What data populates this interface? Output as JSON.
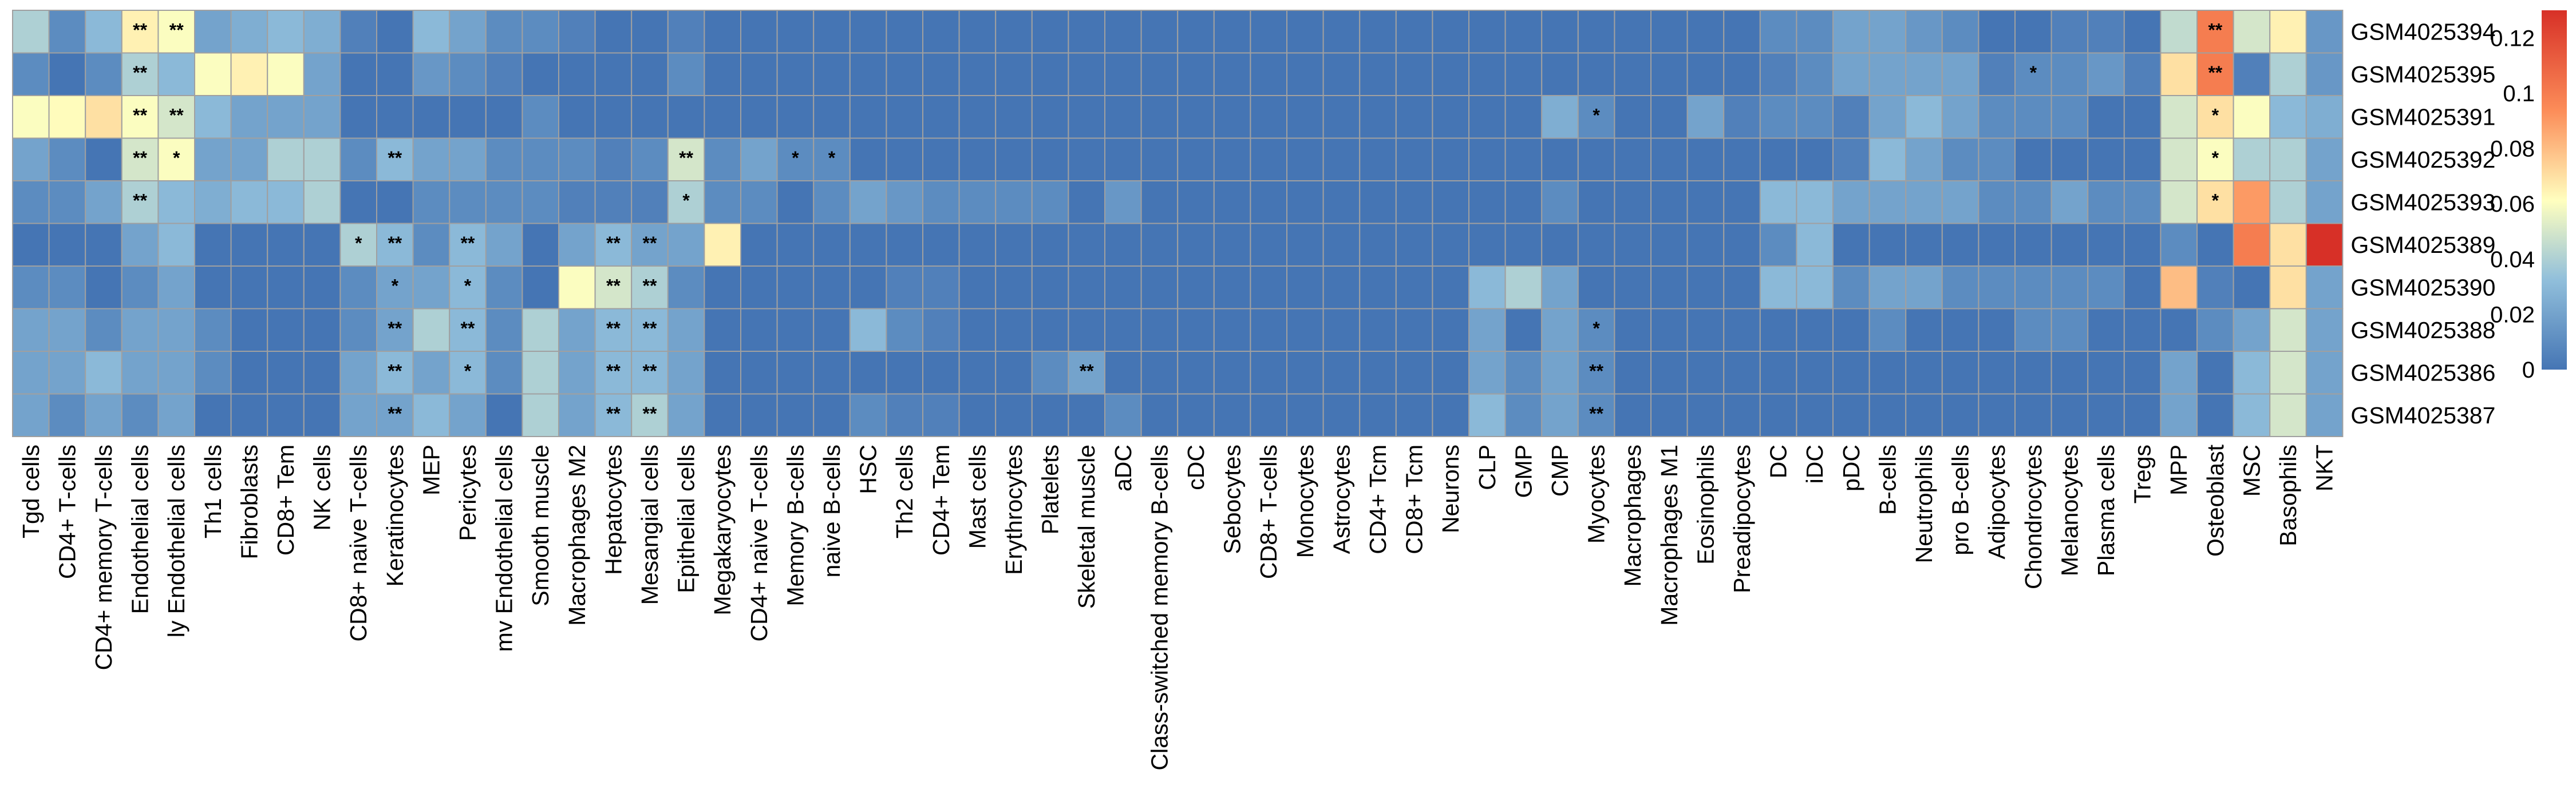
{
  "chart_data": {
    "type": "heatmap",
    "title": "",
    "xlabel": "",
    "ylabel": "",
    "legend": "right",
    "colorbar": {
      "min": 0,
      "max": 0.13,
      "ticks": [
        "0",
        "0.02",
        "0.04",
        "0.06",
        "0.08",
        "0.1",
        "0.12"
      ],
      "tick_values": [
        0,
        0.02,
        0.04,
        0.06,
        0.08,
        0.1,
        0.12
      ]
    },
    "colors": {
      "low": "#4575B4",
      "mid": "#FFFFBF",
      "high": "#D73027",
      "grid": "#a0a0a0"
    },
    "columns": [
      "Tgd cells",
      "CD4+ T-cells",
      "CD4+ memory T-cells",
      "Endothelial cells",
      "ly Endothelial cells",
      "Th1 cells",
      "Fibroblasts",
      "CD8+ Tem",
      "NK cells",
      "CD8+ naive T-cells",
      "Keratinocytes",
      "MEP",
      "Pericytes",
      "mv Endothelial cells",
      "Smooth muscle",
      "Macrophages M2",
      "Hepatocytes",
      "Mesangial cells",
      "Epithelial cells",
      "Megakaryocytes",
      "CD4+ naive T-cells",
      "Memory B-cells",
      "naive B-cells",
      "HSC",
      "Th2 cells",
      "CD4+ Tem",
      "Mast cells",
      "Erythrocytes",
      "Platelets",
      "Skeletal muscle",
      "aDC",
      "Class-switched memory B-cells",
      "cDC",
      "Sebocytes",
      "CD8+ T-cells",
      "Monocytes",
      "Astrocytes",
      "CD4+ Tcm",
      "CD8+ Tcm",
      "Neurons",
      "CLP",
      "GMP",
      "CMP",
      "Myocytes",
      "Macrophages",
      "Macrophages M1",
      "Eosinophils",
      "Preadipocytes",
      "DC",
      "iDC",
      "pDC",
      "B-cells",
      "Neutrophils",
      "pro B-cells",
      "Adipocytes",
      "Chondrocytes",
      "Melanocytes",
      "Plasma cells",
      "Tregs",
      "MPP",
      "Osteoblast",
      "MSC",
      "Basophils",
      "NKT"
    ],
    "rows": [
      "GSM4025394",
      "GSM4025395",
      "GSM4025391",
      "GSM4025392",
      "GSM4025393",
      "GSM4025389",
      "GSM4025390",
      "GSM4025388",
      "GSM4025386",
      "GSM4025387"
    ],
    "values": [
      [
        0.04,
        0.01,
        0.03,
        0.065,
        0.06,
        0.02,
        0.025,
        0.03,
        0.025,
        0.005,
        0,
        0.03,
        0.02,
        0.01,
        0.01,
        0.005,
        0,
        0,
        0.005,
        0,
        0,
        0,
        0,
        0,
        0,
        0,
        0,
        0,
        0,
        0,
        0,
        0,
        0,
        0,
        0,
        0,
        0,
        0,
        0,
        0,
        0,
        0,
        0,
        0,
        0,
        0,
        0,
        0,
        0.01,
        0.01,
        0.02,
        0.02,
        0.015,
        0.01,
        0,
        0,
        0.005,
        0.005,
        0,
        0.045,
        0.1,
        0.05,
        0.065,
        0.015
      ],
      [
        0.01,
        0,
        0.01,
        0.04,
        0.03,
        0.06,
        0.065,
        0.06,
        0.02,
        0,
        0,
        0.015,
        0.01,
        0.005,
        0,
        0,
        0,
        0,
        0.01,
        0,
        0,
        0,
        0,
        0,
        0,
        0,
        0,
        0,
        0,
        0,
        0,
        0,
        0,
        0,
        0,
        0,
        0,
        0,
        0,
        0,
        0,
        0,
        0,
        0,
        0,
        0,
        0,
        0,
        0.005,
        0.01,
        0.02,
        0.02,
        0.02,
        0.02,
        0.005,
        0.01,
        0.01,
        0.015,
        0.005,
        0.07,
        0.1,
        0.005,
        0.04,
        0.015
      ],
      [
        0.06,
        0.062,
        0.07,
        0.06,
        0.05,
        0.03,
        0.02,
        0.02,
        0.02,
        0,
        0,
        0,
        0,
        0,
        0.01,
        0,
        0,
        0,
        0,
        0,
        0,
        0,
        0,
        0,
        0,
        0,
        0,
        0,
        0,
        0,
        0,
        0,
        0,
        0,
        0,
        0,
        0,
        0,
        0,
        0,
        0,
        0,
        0.025,
        0.01,
        0,
        0,
        0.02,
        0.005,
        0.01,
        0.01,
        0.005,
        0.02,
        0.03,
        0.02,
        0.01,
        0.01,
        0.01,
        0,
        0,
        0.05,
        0.07,
        0.06,
        0.03,
        0.025
      ],
      [
        0.02,
        0.01,
        0,
        0.05,
        0.06,
        0.02,
        0.02,
        0.04,
        0.04,
        0.01,
        0.03,
        0.02,
        0.02,
        0.01,
        0.01,
        0.01,
        0.005,
        0.01,
        0.05,
        0.01,
        0.02,
        0.01,
        0.01,
        0,
        0,
        0,
        0,
        0,
        0,
        0,
        0,
        0,
        0,
        0,
        0,
        0,
        0,
        0,
        0,
        0,
        0,
        0,
        0,
        0,
        0,
        0,
        0,
        0,
        0,
        0,
        0.005,
        0.03,
        0.02,
        0.01,
        0.01,
        0,
        0,
        0,
        0,
        0.05,
        0.06,
        0.04,
        0.04,
        0.02
      ],
      [
        0.01,
        0.01,
        0.02,
        0.04,
        0.03,
        0.025,
        0.03,
        0.03,
        0.04,
        0,
        0,
        0.01,
        0.01,
        0.01,
        0.01,
        0.005,
        0.005,
        0.005,
        0.04,
        0.01,
        0.01,
        0,
        0.01,
        0.02,
        0.015,
        0.01,
        0.01,
        0.01,
        0.01,
        0,
        0.015,
        0,
        0,
        0,
        0,
        0,
        0,
        0,
        0,
        0,
        0,
        0,
        0.01,
        0,
        0,
        0,
        0,
        0,
        0.03,
        0.03,
        0.02,
        0.02,
        0.02,
        0.02,
        0.01,
        0.01,
        0.02,
        0.01,
        0.01,
        0.05,
        0.07,
        0.09,
        0.04,
        0.02
      ],
      [
        0,
        0,
        0,
        0.02,
        0.03,
        0,
        0,
        0,
        0,
        0.04,
        0.03,
        0.01,
        0.03,
        0.02,
        0,
        0.02,
        0.03,
        0.02,
        0.02,
        0.065,
        0,
        0,
        0,
        0,
        0,
        0,
        0,
        0,
        0,
        0,
        0,
        0,
        0,
        0,
        0,
        0,
        0,
        0,
        0,
        0,
        0,
        0,
        0,
        0,
        0,
        0,
        0,
        0,
        0.01,
        0.03,
        0,
        0,
        0,
        0,
        0,
        0,
        0,
        0,
        0,
        0.01,
        0,
        0.1,
        0.07,
        0.13
      ],
      [
        0.01,
        0.01,
        0,
        0.01,
        0.02,
        0,
        0,
        0,
        0,
        0.01,
        0.02,
        0.02,
        0.03,
        0.01,
        0,
        0.06,
        0.05,
        0.04,
        0.01,
        0,
        0,
        0,
        0,
        0,
        0.005,
        0.005,
        0,
        0,
        0,
        0,
        0,
        0,
        0,
        0,
        0,
        0,
        0,
        0,
        0,
        0,
        0.03,
        0.04,
        0.02,
        0,
        0,
        0,
        0,
        0,
        0.03,
        0.03,
        0.01,
        0.02,
        0.02,
        0.01,
        0.01,
        0.01,
        0.01,
        0.01,
        0,
        0.08,
        0.005,
        0,
        0.07,
        0.02
      ],
      [
        0.02,
        0.02,
        0.01,
        0.02,
        0.02,
        0.01,
        0,
        0,
        0,
        0.01,
        0.02,
        0.04,
        0.03,
        0.01,
        0.04,
        0.02,
        0.03,
        0.03,
        0.02,
        0,
        0,
        0,
        0,
        0.03,
        0.01,
        0.005,
        0,
        0,
        0,
        0,
        0,
        0,
        0,
        0,
        0,
        0,
        0,
        0,
        0,
        0,
        0.02,
        0,
        0.02,
        0.01,
        0,
        0,
        0,
        0,
        0,
        0,
        0,
        0.01,
        0,
        0,
        0,
        0.01,
        0.01,
        0,
        0,
        0,
        0.01,
        0.02,
        0.05,
        0.02
      ],
      [
        0.02,
        0.02,
        0.03,
        0.02,
        0.02,
        0.01,
        0,
        0,
        0,
        0.02,
        0.03,
        0.02,
        0.03,
        0.01,
        0.04,
        0.02,
        0.03,
        0.03,
        0.02,
        0,
        0,
        0,
        0,
        0,
        0,
        0,
        0,
        0,
        0.01,
        0.02,
        0,
        0,
        0,
        0,
        0,
        0,
        0,
        0,
        0,
        0,
        0.02,
        0.01,
        0.02,
        0.01,
        0,
        0,
        0,
        0,
        0,
        0,
        0,
        0,
        0,
        0,
        0,
        0,
        0,
        0,
        0,
        0.02,
        0,
        0.03,
        0.05,
        0.02
      ],
      [
        0.02,
        0.01,
        0.02,
        0.01,
        0.02,
        0,
        0,
        0,
        0,
        0.02,
        0.02,
        0.03,
        0.02,
        0,
        0.04,
        0.02,
        0.03,
        0.04,
        0.02,
        0,
        0,
        0,
        0,
        0.01,
        0.005,
        0.005,
        0,
        0,
        0,
        0,
        0.01,
        0,
        0,
        0,
        0,
        0,
        0,
        0,
        0,
        0,
        0.03,
        0.01,
        0.02,
        0.01,
        0,
        0,
        0,
        0,
        0,
        0,
        0,
        0,
        0,
        0,
        0,
        0,
        0,
        0,
        0,
        0.02,
        0,
        0.03,
        0.05,
        0.02
      ]
    ],
    "annotations": [
      {
        "row": 0,
        "col": 3,
        "text": "**"
      },
      {
        "row": 0,
        "col": 4,
        "text": "**"
      },
      {
        "row": 0,
        "col": 60,
        "text": "**"
      },
      {
        "row": 1,
        "col": 3,
        "text": "**"
      },
      {
        "row": 1,
        "col": 55,
        "text": "*"
      },
      {
        "row": 1,
        "col": 60,
        "text": "**"
      },
      {
        "row": 2,
        "col": 3,
        "text": "**"
      },
      {
        "row": 2,
        "col": 4,
        "text": "**"
      },
      {
        "row": 2,
        "col": 43,
        "text": "*"
      },
      {
        "row": 2,
        "col": 60,
        "text": "*"
      },
      {
        "row": 3,
        "col": 3,
        "text": "**"
      },
      {
        "row": 3,
        "col": 4,
        "text": "*"
      },
      {
        "row": 3,
        "col": 10,
        "text": "**"
      },
      {
        "row": 3,
        "col": 18,
        "text": "**"
      },
      {
        "row": 3,
        "col": 21,
        "text": "*"
      },
      {
        "row": 3,
        "col": 22,
        "text": "*"
      },
      {
        "row": 3,
        "col": 60,
        "text": "*"
      },
      {
        "row": 4,
        "col": 3,
        "text": "**"
      },
      {
        "row": 4,
        "col": 18,
        "text": "*"
      },
      {
        "row": 4,
        "col": 60,
        "text": "*"
      },
      {
        "row": 5,
        "col": 9,
        "text": "*"
      },
      {
        "row": 5,
        "col": 10,
        "text": "**"
      },
      {
        "row": 5,
        "col": 12,
        "text": "**"
      },
      {
        "row": 5,
        "col": 16,
        "text": "**"
      },
      {
        "row": 5,
        "col": 17,
        "text": "**"
      },
      {
        "row": 6,
        "col": 10,
        "text": "*"
      },
      {
        "row": 6,
        "col": 12,
        "text": "*"
      },
      {
        "row": 6,
        "col": 16,
        "text": "**"
      },
      {
        "row": 6,
        "col": 17,
        "text": "**"
      },
      {
        "row": 7,
        "col": 10,
        "text": "**"
      },
      {
        "row": 7,
        "col": 12,
        "text": "**"
      },
      {
        "row": 7,
        "col": 16,
        "text": "**"
      },
      {
        "row": 7,
        "col": 17,
        "text": "**"
      },
      {
        "row": 7,
        "col": 43,
        "text": "*"
      },
      {
        "row": 8,
        "col": 10,
        "text": "**"
      },
      {
        "row": 8,
        "col": 12,
        "text": "*"
      },
      {
        "row": 8,
        "col": 16,
        "text": "**"
      },
      {
        "row": 8,
        "col": 17,
        "text": "**"
      },
      {
        "row": 8,
        "col": 29,
        "text": "**"
      },
      {
        "row": 8,
        "col": 43,
        "text": "**"
      },
      {
        "row": 9,
        "col": 10,
        "text": "**"
      },
      {
        "row": 9,
        "col": 16,
        "text": "**"
      },
      {
        "row": 9,
        "col": 17,
        "text": "**"
      },
      {
        "row": 9,
        "col": 43,
        "text": "**"
      }
    ]
  }
}
